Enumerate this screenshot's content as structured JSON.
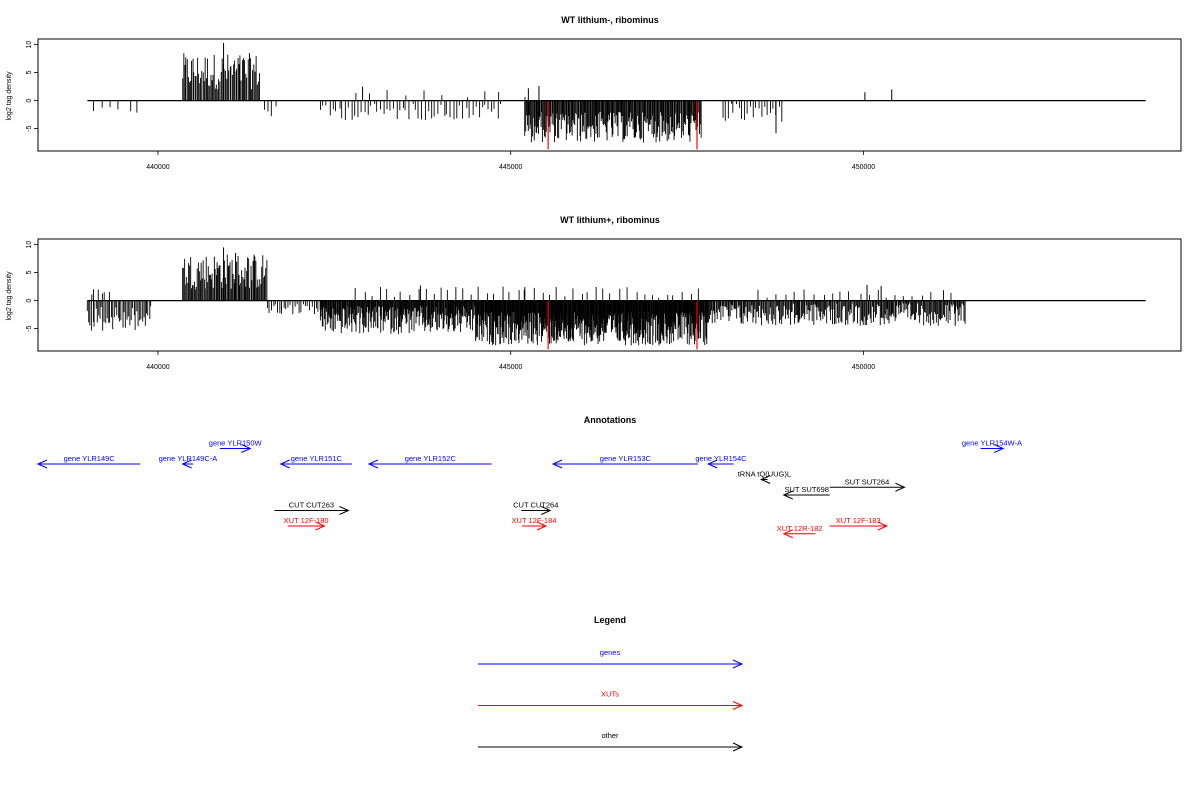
{
  "colors": {
    "genes": "#0000ff",
    "xuts": "#ff0000",
    "other": "#000000",
    "bar": "#000000",
    "highlight": "#ff0000"
  },
  "chart_data": [
    {
      "type": "bar",
      "title": "WT lithium-, ribominus",
      "ylabel": "log2 tag density",
      "xlim": [
        438300,
        454500
      ],
      "ylim": [
        -9,
        11
      ],
      "x_ticks": [
        440000,
        445000,
        450000
      ],
      "x_tick_labels": [
        "440000",
        "445000",
        "450000"
      ],
      "y_ticks": [
        -5,
        0,
        5,
        10
      ],
      "y_tick_labels": [
        "-5",
        "0",
        "5",
        "10"
      ],
      "baseline_range": [
        439000,
        454000
      ],
      "grid": false,
      "legend": "none",
      "segments": [
        {
          "from": 440350,
          "to": 441450,
          "step": 16,
          "strand": "+",
          "min": 2,
          "max": 8.5
        },
        {
          "from": 439100,
          "to": 439800,
          "step": 120,
          "strand": "-",
          "min": 0.5,
          "max": 2.5
        },
        {
          "from": 441500,
          "to": 441700,
          "step": 60,
          "strand": "-",
          "min": 1,
          "max": 3
        },
        {
          "from": 442300,
          "to": 444900,
          "step": 45,
          "strand": "-",
          "min": 0.5,
          "max": 3.5
        },
        {
          "from": 445200,
          "to": 447700,
          "step": 12,
          "strand": "-",
          "min": 2,
          "max": 7.5
        },
        {
          "from": 448000,
          "to": 448850,
          "step": 40,
          "strand": "-",
          "min": 0.5,
          "max": 4
        },
        {
          "from": 442800,
          "to": 445300,
          "step": 260,
          "strand": "+",
          "min": 0.5,
          "max": 2
        }
      ],
      "peaks": [
        {
          "x": 440930,
          "y": 10.3
        },
        {
          "x": 442900,
          "y": 2.5
        },
        {
          "x": 445250,
          "y": 2.2
        },
        {
          "x": 445400,
          "y": 2.6
        },
        {
          "x": 450020,
          "y": 1.5
        },
        {
          "x": 450400,
          "y": 2.0
        },
        {
          "x": 448760,
          "y": -5.8
        }
      ],
      "highlights": [
        {
          "x": 445530,
          "y": -8.7
        },
        {
          "x": 447640,
          "y": -8.7
        }
      ]
    },
    {
      "type": "bar",
      "title": "WT lithium+, ribominus",
      "ylabel": "log2 tag density",
      "xlim": [
        438300,
        454500
      ],
      "ylim": [
        -9,
        11
      ],
      "x_ticks": [
        440000,
        445000,
        450000
      ],
      "x_tick_labels": [
        "440000",
        "445000",
        "450000"
      ],
      "y_ticks": [
        -5,
        0,
        5,
        10
      ],
      "y_tick_labels": [
        "-5",
        "0",
        "5",
        "10"
      ],
      "baseline_range": [
        439000,
        454000
      ],
      "grid": false,
      "legend": "none",
      "segments": [
        {
          "from": 440350,
          "to": 441550,
          "step": 14,
          "strand": "+",
          "min": 2,
          "max": 8.5
        },
        {
          "from": 439000,
          "to": 439900,
          "step": 20,
          "strand": "-",
          "min": 1,
          "max": 5.5
        },
        {
          "from": 439050,
          "to": 439300,
          "step": 50,
          "strand": "+",
          "min": 0.5,
          "max": 2.3
        },
        {
          "from": 441550,
          "to": 442300,
          "step": 30,
          "strand": "-",
          "min": 0.5,
          "max": 2.5
        },
        {
          "from": 442300,
          "to": 444500,
          "step": 10,
          "strand": "-",
          "min": 1,
          "max": 6
        },
        {
          "from": 444500,
          "to": 447800,
          "step": 8,
          "strand": "-",
          "min": 2,
          "max": 8
        },
        {
          "from": 442800,
          "to": 447700,
          "step": 110,
          "strand": "+",
          "min": 0.5,
          "max": 2.5
        },
        {
          "from": 447800,
          "to": 451450,
          "step": 14,
          "strand": "-",
          "min": 0.5,
          "max": 4.5
        },
        {
          "from": 448500,
          "to": 451300,
          "step": 130,
          "strand": "+",
          "min": 0.5,
          "max": 2
        }
      ],
      "peaks": [
        {
          "x": 440930,
          "y": 9.5
        },
        {
          "x": 441100,
          "y": 8.5
        },
        {
          "x": 443720,
          "y": 2.7
        },
        {
          "x": 445200,
          "y": 2.4
        },
        {
          "x": 450050,
          "y": 2.8
        },
        {
          "x": 450250,
          "y": 2.6
        },
        {
          "x": 451300,
          "y": -4.5
        }
      ],
      "highlights": [
        {
          "x": 445530,
          "y": -8.7
        },
        {
          "x": 447640,
          "y": -8.7
        }
      ]
    }
  ],
  "annotations": {
    "title": "Annotations",
    "features": [
      {
        "label": "gene YLR149C",
        "type": "genes",
        "from": 438300,
        "to": 439750,
        "strand": "-",
        "row": 0
      },
      {
        "label": "gene YLR149C-A",
        "type": "genes",
        "from": 440350,
        "to": 440500,
        "strand": "-",
        "row": 0
      },
      {
        "label": "gene YLR150W",
        "type": "genes",
        "from": 440880,
        "to": 441310,
        "strand": "+",
        "row": -1
      },
      {
        "label": "gene YLR151C",
        "type": "genes",
        "from": 441740,
        "to": 442750,
        "strand": "-",
        "row": 0
      },
      {
        "label": "gene YLR152C",
        "type": "genes",
        "from": 442990,
        "to": 444730,
        "strand": "-",
        "row": 0
      },
      {
        "label": "gene YLR153C",
        "type": "genes",
        "from": 445600,
        "to": 447650,
        "strand": "-",
        "row": 0
      },
      {
        "label": "gene YLR154C",
        "type": "genes",
        "from": 447800,
        "to": 448160,
        "strand": "-",
        "row": 0
      },
      {
        "label": "gene YLR154W-A",
        "type": "genes",
        "from": 451660,
        "to": 451980,
        "strand": "+",
        "row": -1
      },
      {
        "label": "tRNA tQ(UUG)L",
        "type": "other",
        "from": 448550,
        "to": 448640,
        "strand": "-",
        "row": 1
      },
      {
        "label": "SUT SUT698",
        "type": "other",
        "from": 448870,
        "to": 449520,
        "strand": "-",
        "row": 2
      },
      {
        "label": "SUT SUT264",
        "type": "other",
        "from": 449520,
        "to": 450580,
        "strand": "+",
        "row": 1.5
      },
      {
        "label": "CUT CUT263",
        "type": "other",
        "from": 441650,
        "to": 442700,
        "strand": "+",
        "row": 3
      },
      {
        "label": "CUT CUT264",
        "type": "other",
        "from": 445150,
        "to": 445560,
        "strand": "+",
        "row": 3
      },
      {
        "label": "XUT 12F-180",
        "type": "xuts",
        "from": 441840,
        "to": 442360,
        "strand": "+",
        "row": 4
      },
      {
        "label": "XUT 12F-184",
        "type": "xuts",
        "from": 445160,
        "to": 445500,
        "strand": "+",
        "row": 4
      },
      {
        "label": "XUT 12R-182",
        "type": "xuts",
        "from": 448870,
        "to": 449320,
        "strand": "-",
        "row": 4.5
      },
      {
        "label": "XUT 12F-183",
        "type": "xuts",
        "from": 449520,
        "to": 450330,
        "strand": "+",
        "row": 4
      }
    ]
  },
  "legend": {
    "title": "Legend",
    "items": [
      {
        "label": "genes",
        "type": "genes"
      },
      {
        "label": "XUTs",
        "type": "xuts"
      },
      {
        "label": "other",
        "type": "other"
      }
    ]
  }
}
